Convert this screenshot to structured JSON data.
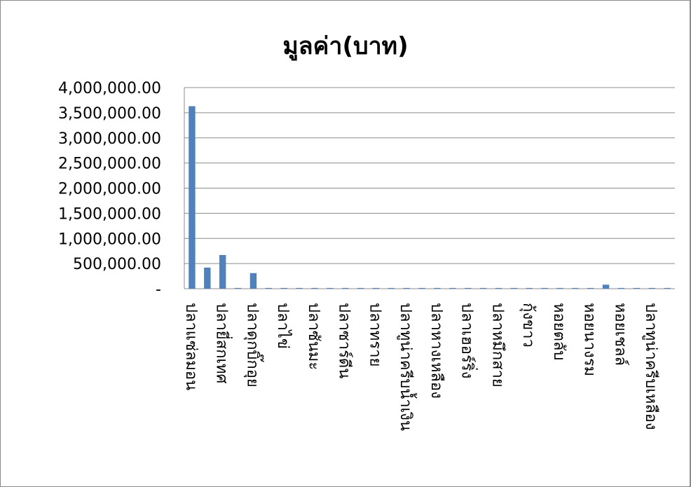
{
  "chart_data": {
    "type": "bar",
    "title": "มูลค่า(บาท)",
    "xlabel": "",
    "ylabel": "",
    "ylim": [
      0,
      4000000
    ],
    "y_ticks": [
      0,
      500000,
      1000000,
      1500000,
      2000000,
      2500000,
      3000000,
      3500000,
      4000000
    ],
    "y_tick_labels": [
      "-",
      "500,000.00",
      "1,000,000.00",
      "1,500,000.00",
      "2,000,000.00",
      "2,500,000.00",
      "3,000,000.00",
      "3,500,000.00",
      "4,000,000.00"
    ],
    "grid": true,
    "legend": "none",
    "bar_color": "#4f81bd",
    "categories": [
      "ปลาแซ่ลมอน",
      "",
      "ปลายี่สกเทศ",
      "",
      "ปลาดุกบิ๊กอุย",
      "",
      "ปลาไข่",
      "",
      "ปลาซันมะ",
      "",
      "ปลาซาร์ดีน",
      "",
      "ปลาทราย",
      "",
      "ปลาทูน่าครีบน้ำเงิน",
      "",
      "ปลาหางเหลือง",
      "",
      "ปลาเฮอร์ริ่ง",
      "",
      "ปลาหมึกสาย",
      "",
      "กุ้งขาว",
      "",
      "หอยตลับ",
      "",
      "หอยนางรม",
      "",
      "หอยเชลล์",
      "",
      "ปลาทูน่าครีบเหลือง",
      ""
    ],
    "values": [
      3630000,
      420000,
      670000,
      15000,
      310000,
      15000,
      15000,
      15000,
      15000,
      15000,
      15000,
      15000,
      15000,
      15000,
      15000,
      15000,
      15000,
      15000,
      15000,
      15000,
      15000,
      15000,
      15000,
      15000,
      15000,
      15000,
      15000,
      80000,
      15000,
      15000,
      15000,
      15000
    ]
  }
}
